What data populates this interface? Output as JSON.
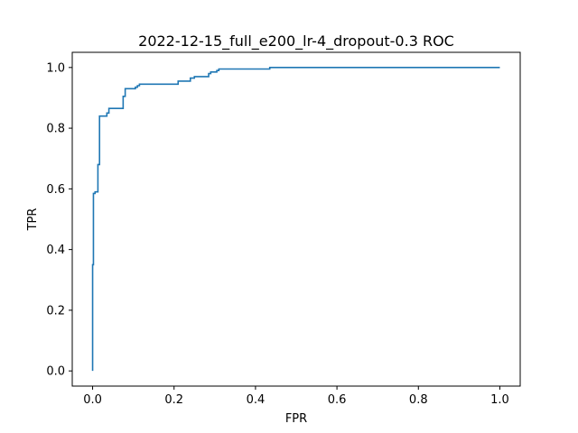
{
  "chart_data": {
    "type": "line",
    "title": "2022-12-15_full_e200_lr-4_dropout-0.3 ROC",
    "xlabel": "FPR",
    "ylabel": "TPR",
    "xlim": [
      -0.05,
      1.05
    ],
    "ylim": [
      -0.05,
      1.05
    ],
    "xticks": [
      0.0,
      0.2,
      0.4,
      0.6,
      0.8,
      1.0
    ],
    "xtick_labels": [
      "0.0",
      "0.2",
      "0.4",
      "0.6",
      "0.8",
      "1.0"
    ],
    "yticks": [
      0.0,
      0.2,
      0.4,
      0.6,
      0.8,
      1.0
    ],
    "ytick_labels": [
      "0.0",
      "0.2",
      "0.4",
      "0.6",
      "0.8",
      "1.0"
    ],
    "grid": false,
    "line_color": "#1f77b4",
    "series": [
      {
        "step": "post",
        "x": [
          0.0,
          0.0,
          0.002,
          0.006,
          0.013,
          0.017,
          0.03,
          0.035,
          0.04,
          0.07,
          0.075,
          0.08,
          0.1,
          0.105,
          0.11,
          0.115,
          0.2,
          0.21,
          0.235,
          0.24,
          0.25,
          0.28,
          0.285,
          0.29,
          0.3,
          0.305,
          0.31,
          0.43,
          0.435,
          1.0
        ],
        "y": [
          0.0,
          0.35,
          0.585,
          0.59,
          0.68,
          0.84,
          0.84,
          0.85,
          0.865,
          0.865,
          0.905,
          0.93,
          0.93,
          0.935,
          0.94,
          0.945,
          0.945,
          0.955,
          0.955,
          0.965,
          0.97,
          0.97,
          0.98,
          0.985,
          0.985,
          0.99,
          0.995,
          0.995,
          1.0,
          1.0
        ]
      }
    ]
  }
}
